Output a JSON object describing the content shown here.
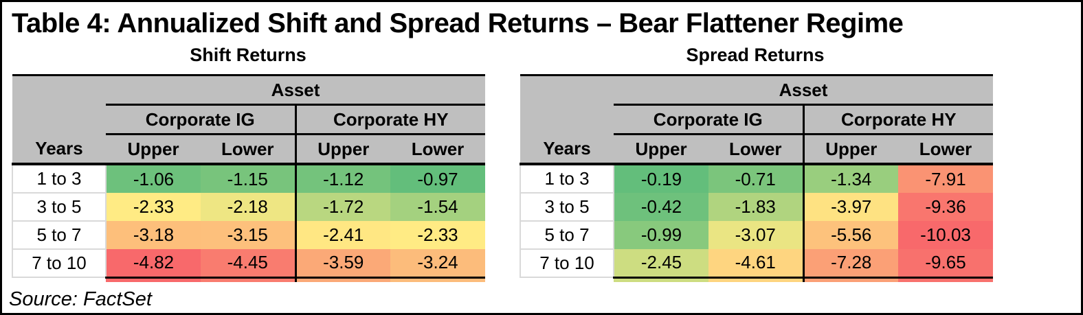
{
  "title": "Table 4: Annualized Shift and Spread Returns – Bear Flattener Regime",
  "source": "Source: FactSet",
  "colors": {
    "header_bg": "#BFBFBF",
    "border": "#000000",
    "years_grid": "#D9D9D9",
    "scale_min_red": "#F8696B",
    "scale_mid_yellow": "#FFEB84",
    "scale_max_green": "#63BE7B"
  },
  "tables": [
    {
      "name": "Shift Returns",
      "asset_label": "Asset",
      "group_labels": [
        "Corporate IG",
        "Corporate HY"
      ],
      "col_labels": [
        "Upper",
        "Lower",
        "Upper",
        "Lower"
      ],
      "years_label": "Years",
      "rows": [
        {
          "years": "1 to 3",
          "cells": [
            {
              "v": "-1.06",
              "c": "#6DC17C"
            },
            {
              "v": "-1.15",
              "c": "#78C47C"
            },
            {
              "v": "-1.12",
              "c": "#74C37C"
            },
            {
              "v": "-0.97",
              "c": "#63BE7B"
            }
          ]
        },
        {
          "years": "3 to 5",
          "cells": [
            {
              "v": "-2.33",
              "c": "#FFEB84"
            },
            {
              "v": "-2.18",
              "c": "#EEE683"
            },
            {
              "v": "-1.72",
              "c": "#B9D780"
            },
            {
              "v": "-1.54",
              "c": "#A4D17F"
            }
          ]
        },
        {
          "years": "5 to 7",
          "cells": [
            {
              "v": "-3.18",
              "c": "#FDBF7B"
            },
            {
              "v": "-3.15",
              "c": "#FDC07C"
            },
            {
              "v": "-2.41",
              "c": "#FFE783"
            },
            {
              "v": "-2.33",
              "c": "#FFEB84"
            }
          ]
        },
        {
          "years": "7 to 10",
          "cells": [
            {
              "v": "-4.82",
              "c": "#F8696B"
            },
            {
              "v": "-4.45",
              "c": "#F97C6F"
            },
            {
              "v": "-3.59",
              "c": "#FBA977"
            },
            {
              "v": "-3.24",
              "c": "#FCBC7B"
            }
          ]
        }
      ]
    },
    {
      "name": "Spread Returns",
      "asset_label": "Asset",
      "group_labels": [
        "Corporate IG",
        "Corporate HY"
      ],
      "col_labels": [
        "Upper",
        "Lower",
        "Upper",
        "Lower"
      ],
      "years_label": "Years",
      "rows": [
        {
          "years": "1 to 3",
          "cells": [
            {
              "v": "-0.19",
              "c": "#63BE7B"
            },
            {
              "v": "-0.71",
              "c": "#7BC57C"
            },
            {
              "v": "-1.34",
              "c": "#99CE7E"
            },
            {
              "v": "-7.91",
              "c": "#FA9373"
            }
          ]
        },
        {
          "years": "3 to 5",
          "cells": [
            {
              "v": "-0.42",
              "c": "#6EC17C"
            },
            {
              "v": "-1.83",
              "c": "#B0D47F"
            },
            {
              "v": "-3.97",
              "c": "#FEE282"
            },
            {
              "v": "-9.36",
              "c": "#F9766E"
            }
          ]
        },
        {
          "years": "5 to 7",
          "cells": [
            {
              "v": "-0.99",
              "c": "#88C97D"
            },
            {
              "v": "-3.07",
              "c": "#EAE583"
            },
            {
              "v": "-5.56",
              "c": "#FDC27C"
            },
            {
              "v": "-10.03",
              "c": "#F8696B"
            }
          ]
        },
        {
          "years": "7 to 10",
          "cells": [
            {
              "v": "-2.45",
              "c": "#CDDD81"
            },
            {
              "v": "-4.61",
              "c": "#FED580"
            },
            {
              "v": "-7.28",
              "c": "#FBA076"
            },
            {
              "v": "-9.65",
              "c": "#F8716D"
            }
          ]
        }
      ]
    }
  ],
  "chart_data": [
    {
      "type": "heatmap",
      "title": "Shift Returns",
      "row_axis_label": "Years",
      "rows": [
        "1 to 3",
        "3 to 5",
        "5 to 7",
        "7 to 10"
      ],
      "columns": [
        "Corporate IG Upper",
        "Corporate IG Lower",
        "Corporate HY Upper",
        "Corporate HY Lower"
      ],
      "values": [
        [
          -1.06,
          -1.15,
          -1.12,
          -0.97
        ],
        [
          -2.33,
          -2.18,
          -1.72,
          -1.54
        ],
        [
          -3.18,
          -3.15,
          -2.41,
          -2.33
        ],
        [
          -4.82,
          -4.45,
          -3.59,
          -3.24
        ]
      ],
      "color_scale": {
        "min": "#F8696B",
        "mid": "#FFEB84",
        "max": "#63BE7B",
        "midpoint": "median"
      }
    },
    {
      "type": "heatmap",
      "title": "Spread Returns",
      "row_axis_label": "Years",
      "rows": [
        "1 to 3",
        "3 to 5",
        "5 to 7",
        "7 to 10"
      ],
      "columns": [
        "Corporate IG Upper",
        "Corporate IG Lower",
        "Corporate HY Upper",
        "Corporate HY Lower"
      ],
      "values": [
        [
          -0.19,
          -0.71,
          -1.34,
          -7.91
        ],
        [
          -0.42,
          -1.83,
          -3.97,
          -9.36
        ],
        [
          -0.99,
          -3.07,
          -5.56,
          -10.03
        ],
        [
          -2.45,
          -4.61,
          -7.28,
          -9.65
        ]
      ],
      "color_scale": {
        "min": "#F8696B",
        "mid": "#FFEB84",
        "max": "#63BE7B",
        "midpoint": "median"
      }
    }
  ]
}
